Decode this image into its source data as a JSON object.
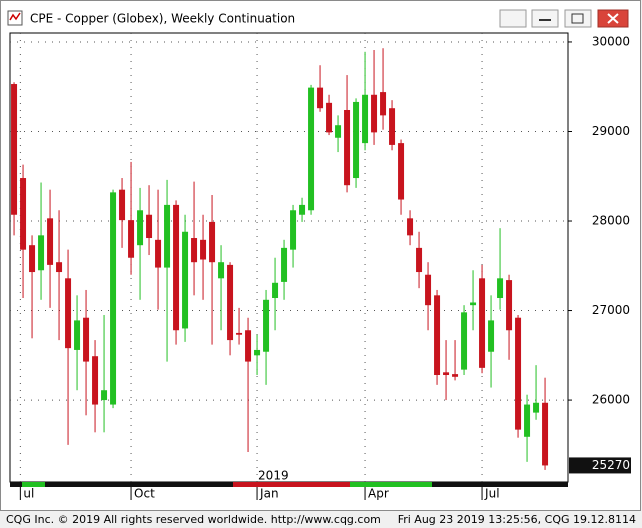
{
  "window": {
    "title": "CPE - Copper (Globex), Weekly Continuation"
  },
  "chart_data": {
    "type": "candlestick",
    "up_color": "#22c022",
    "down_color": "#c8141e",
    "open": [
      29530,
      28480,
      27730,
      27450,
      28030,
      27540,
      27360,
      26560,
      26920,
      26490,
      26000,
      25950,
      28350,
      28010,
      27730,
      28070,
      27790,
      27480,
      28180,
      26800,
      27810,
      27790,
      27990,
      27360,
      27510,
      26750,
      26780,
      26500,
      26540,
      27140,
      27320,
      27680,
      28070,
      28120,
      29490,
      29320,
      28930,
      29240,
      28480,
      28870,
      29410,
      29440,
      29260,
      28870,
      28030,
      27700,
      27400,
      27170,
      26310,
      26290,
      26340,
      27060,
      27360,
      26540,
      27140,
      27340,
      26920,
      25590,
      25860,
      25970
    ],
    "high": [
      29550,
      28630,
      27840,
      28430,
      28350,
      28120,
      27680,
      27170,
      27230,
      26670,
      26950,
      28350,
      28480,
      28660,
      28370,
      28400,
      28350,
      28460,
      28230,
      28070,
      28440,
      28070,
      28290,
      27730,
      27540,
      27030,
      26920,
      26730,
      27230,
      27590,
      27790,
      28180,
      28260,
      29520,
      29740,
      29410,
      29180,
      29630,
      29370,
      29890,
      29910,
      29930,
      29350,
      28910,
      28120,
      27880,
      27540,
      27230,
      26670,
      26670,
      27060,
      27450,
      27510,
      27170,
      27920,
      27400,
      26950,
      26060,
      26390,
      26250
    ],
    "low": [
      27840,
      27140,
      26690,
      27120,
      27030,
      26670,
      25500,
      26110,
      25830,
      25640,
      25640,
      25910,
      27700,
      27400,
      27120,
      27620,
      27010,
      26430,
      26620,
      26650,
      27170,
      27120,
      26620,
      26780,
      26500,
      26620,
      25420,
      26280,
      26170,
      26780,
      27120,
      27480,
      27990,
      28070,
      29220,
      28960,
      28770,
      28320,
      28370,
      28790,
      28850,
      29020,
      28790,
      28070,
      27730,
      27250,
      26780,
      26170,
      26000,
      26220,
      26280,
      26780,
      26300,
      26140,
      27010,
      26450,
      25580,
      25310,
      25780,
      25220
    ],
    "close": [
      28070,
      27680,
      27430,
      27840,
      27510,
      27430,
      26580,
      26890,
      26430,
      25950,
      26110,
      28320,
      28010,
      27590,
      28120,
      27810,
      27480,
      28180,
      26780,
      27880,
      27540,
      27570,
      27540,
      27540,
      26670,
      26730,
      26430,
      26560,
      27120,
      27310,
      27700,
      28120,
      28180,
      29490,
      29260,
      28990,
      29070,
      28400,
      29330,
      29410,
      28990,
      29180,
      28850,
      28240,
      27840,
      27430,
      27060,
      26280,
      26280,
      26260,
      26980,
      27090,
      26360,
      26890,
      27360,
      26780,
      25670,
      25950,
      25970,
      25270
    ],
    "xlim": [
      -0.45,
      61.55
    ],
    "xticks": [
      {
        "value": 0.7,
        "label": "ul"
      },
      {
        "value": 13,
        "label": "Oct"
      },
      {
        "value": 27,
        "label": "Jan"
      },
      {
        "value": 39,
        "label": "Apr"
      },
      {
        "value": 52,
        "label": "Jul"
      }
    ],
    "year_label": "2019",
    "ylim": [
      25085,
      30100
    ],
    "yticks": [
      26000,
      27000,
      28000,
      29000,
      30000
    ],
    "grid": true
  },
  "footer": {
    "left": "CQG Inc. © 2019 All rights reserved worldwide. http://www.cqg.com",
    "right": "Fri Aug 23 2019 13:25:56, CQG 19.12.8114"
  }
}
